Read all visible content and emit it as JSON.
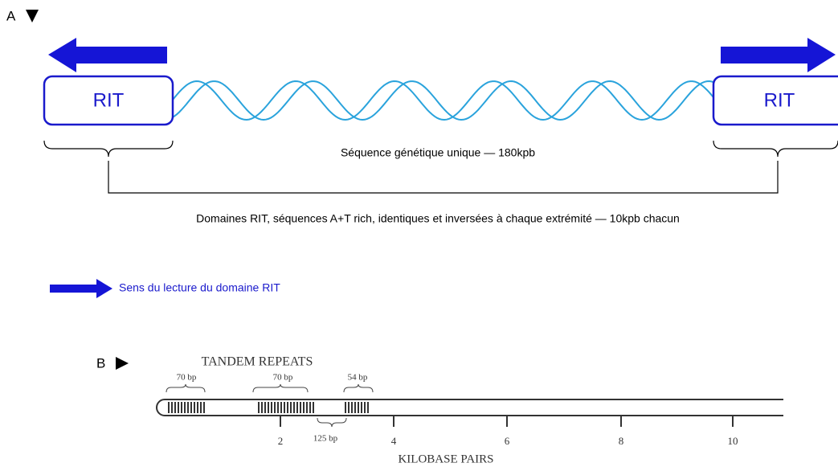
{
  "panel_a": {
    "label": "A",
    "left_box": "RIT",
    "right_box": "RIT",
    "unique_sequence": "Séquence génétique unique  —  180kpb",
    "domains": "Domaines RIT, séquences A+T rich, identiques et inversées à chaque extrémité  — 10kpb chacun",
    "legend": "Sens du lecture du domaine RIT"
  },
  "panel_b": {
    "label": "B",
    "title": "TANDEM REPEATS",
    "repeats": [
      "70 bp",
      "70 bp",
      "54 bp"
    ],
    "gap": "125 bp",
    "scale_labels": [
      "2",
      "4",
      "6",
      "8",
      "10"
    ],
    "axis_title": "KILOBASE PAIRS"
  }
}
